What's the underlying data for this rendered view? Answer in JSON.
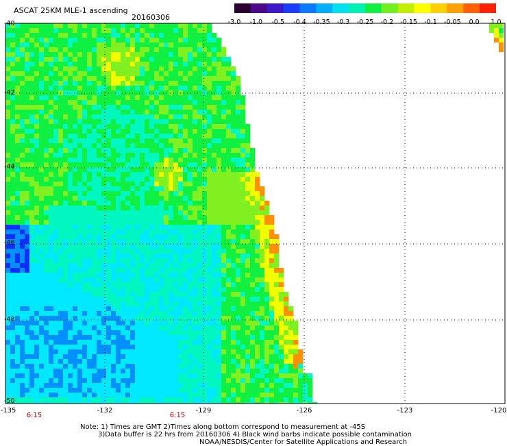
{
  "header": {
    "title": "ASCAT 25KM MLE-1 ascending",
    "date": "20160306"
  },
  "colorbar": {
    "tick_labels": [
      "-3.0",
      "-1.0",
      "-0.5",
      "-0.4",
      "-0.35",
      "-0.3",
      "-0.25",
      "-0.2",
      "-0.15",
      "-0.1",
      "-0.05",
      "0.0",
      "1.0"
    ],
    "colors": [
      "#2a0030",
      "#4b0a8a",
      "#3b18c8",
      "#1a3cff",
      "#0a78ff",
      "#00b0ff",
      "#00e0f0",
      "#00f0b0",
      "#10f040",
      "#70f020",
      "#c0f000",
      "#ffff00",
      "#ffd000",
      "#ffa000",
      "#ff6000",
      "#ff2000"
    ]
  },
  "map": {
    "lat_labels": [
      "-40",
      "-42",
      "-44",
      "-46",
      "-48",
      "-50"
    ],
    "lon_labels": [
      "-135",
      "-132",
      "-129",
      "-126",
      "-123",
      "-120"
    ],
    "time_labels": [
      "6:15",
      "6:15"
    ],
    "colors": {
      "deep_blue": "#0a30ff",
      "blue": "#0090ff",
      "cyan": "#00e8ff",
      "aqua": "#00f8c0",
      "green": "#10f040",
      "lime": "#80f020",
      "yellow": "#f0ff00",
      "orange": "#ff9000",
      "grid": "#000000"
    }
  },
  "notes": {
    "line1": "Note: 1) Times are GMT 2)Times along bottom correspond to measurement at -45S",
    "line2": "3)Data buffer is 22 hrs from 20160306 4) Black wind barbs indicate possible contamination",
    "line3": "NOAA/NESDIS/Center for Satellite Applications and Research"
  }
}
